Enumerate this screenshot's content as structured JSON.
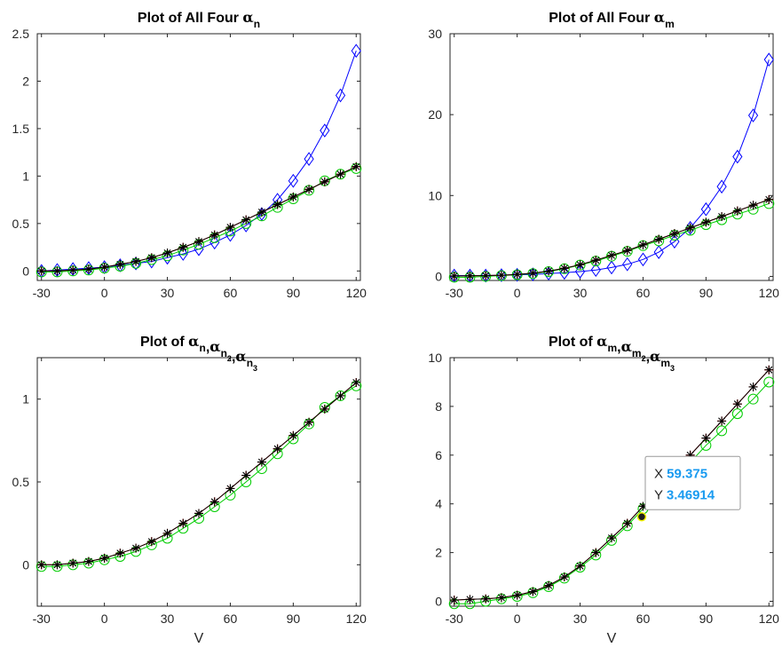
{
  "colors": {
    "alpha": "#0000ff",
    "alpha2": "#ff0000",
    "alpha3": "#000000",
    "alpha1": "#00cc00",
    "datatip_value": "#1a9bf0"
  },
  "chart_data": [
    {
      "type": "line",
      "title": "Plot of All Four αn",
      "title_parts": {
        "prefix": "Plot of All Four ",
        "symbol": "α",
        "sub": "n"
      },
      "xlabel": "",
      "ylabel": "",
      "xlim": [
        -32,
        122
      ],
      "ylim": [
        -0.1,
        2.5
      ],
      "xticks": [
        -30,
        0,
        30,
        60,
        90,
        120
      ],
      "xtick_labels": [
        "-30",
        "0",
        "30",
        "60",
        "90",
        "120"
      ],
      "yticks": [
        0,
        0.5,
        1,
        1.5,
        2,
        2.5
      ],
      "ytick_labels": [
        "0",
        "0.5",
        "1",
        "1.5",
        "2",
        "2.5"
      ],
      "x": [
        -30,
        -22.5,
        -15,
        -7.5,
        0,
        7.5,
        15,
        22.5,
        30,
        37.5,
        45,
        52.5,
        60,
        67.5,
        75,
        82.5,
        90,
        97.5,
        105,
        112.5,
        120
      ],
      "series": [
        {
          "key": "alpha",
          "marker": "diamond",
          "color": "#0000ff",
          "values": [
            0.0,
            0.01,
            0.02,
            0.03,
            0.04,
            0.06,
            0.08,
            0.1,
            0.14,
            0.18,
            0.23,
            0.3,
            0.38,
            0.48,
            0.6,
            0.75,
            0.95,
            1.18,
            1.48,
            1.85,
            2.32
          ]
        },
        {
          "key": "alpha1",
          "marker": "circle",
          "color": "#00cc00",
          "values": [
            -0.01,
            -0.01,
            0.0,
            0.01,
            0.03,
            0.05,
            0.08,
            0.12,
            0.16,
            0.22,
            0.28,
            0.35,
            0.42,
            0.5,
            0.58,
            0.67,
            0.76,
            0.85,
            0.95,
            1.02,
            1.08
          ]
        },
        {
          "key": "alpha2",
          "marker": "plus",
          "color": "#ff0000",
          "values": [
            0.0,
            0.0,
            0.01,
            0.02,
            0.04,
            0.07,
            0.1,
            0.14,
            0.19,
            0.25,
            0.31,
            0.38,
            0.46,
            0.54,
            0.62,
            0.7,
            0.78,
            0.86,
            0.94,
            1.02,
            1.1
          ]
        },
        {
          "key": "alpha3",
          "marker": "asterisk",
          "color": "#000000",
          "values": [
            0.0,
            0.0,
            0.01,
            0.02,
            0.04,
            0.07,
            0.1,
            0.14,
            0.19,
            0.25,
            0.31,
            0.38,
            0.46,
            0.54,
            0.62,
            0.7,
            0.78,
            0.86,
            0.94,
            1.02,
            1.1
          ]
        }
      ]
    },
    {
      "type": "line",
      "title": "Plot of All Four αm",
      "title_parts": {
        "prefix": "Plot of All Four ",
        "symbol": "α",
        "sub": "m"
      },
      "xlabel": "",
      "ylabel": "",
      "xlim": [
        -32,
        122
      ],
      "ylim": [
        -0.5,
        30
      ],
      "xticks": [
        -30,
        0,
        30,
        60,
        90,
        120
      ],
      "xtick_labels": [
        "-30",
        "0",
        "30",
        "60",
        "90",
        "120"
      ],
      "yticks": [
        0,
        10,
        20,
        30
      ],
      "ytick_labels": [
        "0",
        "10",
        "20",
        "30"
      ],
      "x": [
        -30,
        -22.5,
        -15,
        -7.5,
        0,
        7.5,
        15,
        22.5,
        30,
        37.5,
        45,
        52.5,
        60,
        67.5,
        75,
        82.5,
        90,
        97.5,
        105,
        112.5,
        120
      ],
      "series": [
        {
          "key": "alpha",
          "marker": "diamond",
          "color": "#0000ff",
          "values": [
            0.1,
            0.1,
            0.1,
            0.15,
            0.2,
            0.25,
            0.35,
            0.45,
            0.6,
            0.8,
            1.1,
            1.5,
            2.1,
            3.0,
            4.3,
            6.0,
            8.3,
            11.1,
            14.8,
            19.9,
            26.8
          ]
        },
        {
          "key": "alpha1",
          "marker": "circle",
          "color": "#00cc00",
          "values": [
            -0.1,
            -0.1,
            0.0,
            0.1,
            0.2,
            0.35,
            0.6,
            0.95,
            1.4,
            1.9,
            2.5,
            3.1,
            3.8,
            4.4,
            5.1,
            5.7,
            6.4,
            7.0,
            7.7,
            8.3,
            9.0
          ]
        },
        {
          "key": "alpha2",
          "marker": "plus",
          "color": "#ff0000",
          "values": [
            0.05,
            0.08,
            0.1,
            0.15,
            0.25,
            0.4,
            0.65,
            1.0,
            1.45,
            2.0,
            2.6,
            3.2,
            3.9,
            4.6,
            5.3,
            6.0,
            6.7,
            7.4,
            8.1,
            8.8,
            9.5
          ]
        },
        {
          "key": "alpha3",
          "marker": "asterisk",
          "color": "#000000",
          "values": [
            0.05,
            0.08,
            0.1,
            0.15,
            0.25,
            0.4,
            0.65,
            1.0,
            1.45,
            2.0,
            2.6,
            3.2,
            3.9,
            4.6,
            5.3,
            6.0,
            6.7,
            7.4,
            8.1,
            8.8,
            9.5
          ]
        }
      ]
    },
    {
      "type": "line",
      "title": "Plot of αn,αn2,αn3",
      "title_parts": {
        "prefix": "Plot of ",
        "terms": [
          {
            "symbol": "α",
            "sub": "n",
            "subsub": ""
          },
          {
            "symbol": "α",
            "sub": "n",
            "subsub": "2"
          },
          {
            "symbol": "α",
            "sub": "n",
            "subsub": "3"
          }
        ]
      },
      "xlabel": "V",
      "ylabel": "",
      "xlim": [
        -32,
        122
      ],
      "ylim": [
        -0.25,
        1.25
      ],
      "xticks": [
        -30,
        0,
        30,
        60,
        90,
        120
      ],
      "xtick_labels": [
        "-30",
        "0",
        "30",
        "60",
        "90",
        "120"
      ],
      "yticks": [
        0,
        0.5,
        1
      ],
      "ytick_labels": [
        "0",
        "0.5",
        "1"
      ],
      "x": [
        -30,
        -22.5,
        -15,
        -7.5,
        0,
        7.5,
        15,
        22.5,
        30,
        37.5,
        45,
        52.5,
        60,
        67.5,
        75,
        82.5,
        90,
        97.5,
        105,
        112.5,
        120
      ],
      "series": [
        {
          "key": "alpha1",
          "marker": "circle",
          "color": "#00cc00",
          "values": [
            -0.01,
            -0.01,
            0.0,
            0.01,
            0.03,
            0.05,
            0.08,
            0.12,
            0.16,
            0.22,
            0.28,
            0.35,
            0.42,
            0.5,
            0.58,
            0.67,
            0.76,
            0.85,
            0.95,
            1.02,
            1.08
          ]
        },
        {
          "key": "alpha2",
          "marker": "plus",
          "color": "#ff0000",
          "values": [
            0.0,
            0.0,
            0.01,
            0.02,
            0.04,
            0.07,
            0.1,
            0.14,
            0.19,
            0.25,
            0.31,
            0.38,
            0.46,
            0.54,
            0.62,
            0.7,
            0.78,
            0.86,
            0.94,
            1.02,
            1.1
          ]
        },
        {
          "key": "alpha3",
          "marker": "asterisk",
          "color": "#000000",
          "values": [
            0.0,
            0.0,
            0.01,
            0.02,
            0.04,
            0.07,
            0.1,
            0.14,
            0.19,
            0.25,
            0.31,
            0.38,
            0.46,
            0.54,
            0.62,
            0.7,
            0.78,
            0.86,
            0.94,
            1.02,
            1.1
          ]
        }
      ]
    },
    {
      "type": "line",
      "title": "Plot of αm,αm2,αm3",
      "title_parts": {
        "prefix": "Plot of ",
        "terms": [
          {
            "symbol": "α",
            "sub": "m",
            "subsub": ""
          },
          {
            "symbol": "α",
            "sub": "m",
            "subsub": "2"
          },
          {
            "symbol": "α",
            "sub": "m",
            "subsub": "3"
          }
        ]
      },
      "xlabel": "V",
      "ylabel": "",
      "xlim": [
        -32,
        122
      ],
      "ylim": [
        -0.2,
        10
      ],
      "xticks": [
        -30,
        0,
        30,
        60,
        90,
        120
      ],
      "xtick_labels": [
        "-30",
        "0",
        "30",
        "60",
        "90",
        "120"
      ],
      "yticks": [
        0,
        2,
        4,
        6,
        8,
        10
      ],
      "ytick_labels": [
        "0",
        "2",
        "4",
        "6",
        "8",
        "10"
      ],
      "x": [
        -30,
        -22.5,
        -15,
        -7.5,
        0,
        7.5,
        15,
        22.5,
        30,
        37.5,
        45,
        52.5,
        60,
        67.5,
        75,
        82.5,
        90,
        97.5,
        105,
        112.5,
        120
      ],
      "series": [
        {
          "key": "alpha1",
          "marker": "circle",
          "color": "#00cc00",
          "values": [
            -0.1,
            -0.1,
            0.0,
            0.1,
            0.2,
            0.35,
            0.6,
            0.95,
            1.4,
            1.9,
            2.5,
            3.1,
            3.8,
            4.4,
            5.1,
            5.7,
            6.4,
            7.0,
            7.7,
            8.3,
            9.0
          ]
        },
        {
          "key": "alpha2",
          "marker": "plus",
          "color": "#ff0000",
          "values": [
            0.05,
            0.08,
            0.1,
            0.15,
            0.25,
            0.4,
            0.65,
            1.0,
            1.45,
            2.0,
            2.6,
            3.2,
            3.9,
            4.6,
            5.3,
            6.0,
            6.7,
            7.4,
            8.1,
            8.8,
            9.5
          ]
        },
        {
          "key": "alpha3",
          "marker": "asterisk",
          "color": "#000000",
          "values": [
            0.05,
            0.08,
            0.1,
            0.15,
            0.25,
            0.4,
            0.65,
            1.0,
            1.45,
            2.0,
            2.6,
            3.2,
            3.9,
            4.6,
            5.3,
            6.0,
            6.7,
            7.4,
            8.1,
            8.8,
            9.5
          ]
        }
      ],
      "datatip": {
        "x_label": "X",
        "x_value": "59.375",
        "y_label": "Y",
        "y_value": "3.46914",
        "x": 59.375,
        "y": 3.46914
      }
    }
  ]
}
